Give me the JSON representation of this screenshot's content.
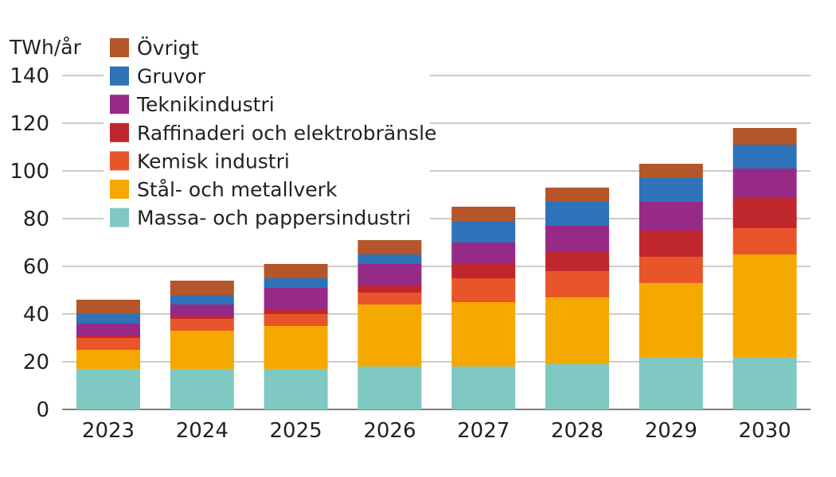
{
  "chart_data": {
    "type": "bar",
    "stacked": true,
    "ylabel": "TWh/år",
    "ylim": [
      0,
      140
    ],
    "yticks": [
      0,
      20,
      40,
      60,
      80,
      100,
      120,
      140
    ],
    "grid": true,
    "legend_position": "top-left",
    "categories": [
      "2023",
      "2024",
      "2025",
      "2026",
      "2027",
      "2028",
      "2029",
      "2030"
    ],
    "series": [
      {
        "name": "Massa- och pappersindustri",
        "color": "#80c8c2",
        "values": [
          17,
          17,
          17,
          18,
          18,
          19,
          22,
          22
        ]
      },
      {
        "name": "Stål- och metallverk",
        "color": "#f5a800",
        "values": [
          8,
          16,
          18,
          26,
          27,
          28,
          31,
          43
        ]
      },
      {
        "name": "Kemisk industri",
        "color": "#e8552a",
        "values": [
          5,
          5,
          5,
          5,
          10,
          11,
          11,
          11
        ]
      },
      {
        "name": "Raffinaderi och elektrobränsle",
        "color": "#c0272d",
        "values": [
          1,
          1,
          2,
          3,
          6,
          8,
          11,
          13
        ]
      },
      {
        "name": "Teknikindustri",
        "color": "#962a86",
        "values": [
          5,
          5,
          9,
          9,
          9,
          11,
          12,
          12
        ]
      },
      {
        "name": "Gruvor",
        "color": "#2e73b9",
        "values": [
          4,
          4,
          4,
          4,
          9,
          10,
          10,
          10
        ]
      },
      {
        "name": "Övrigt",
        "color": "#b4562a",
        "values": [
          6,
          6,
          6,
          6,
          6,
          6,
          6,
          7
        ]
      }
    ]
  }
}
